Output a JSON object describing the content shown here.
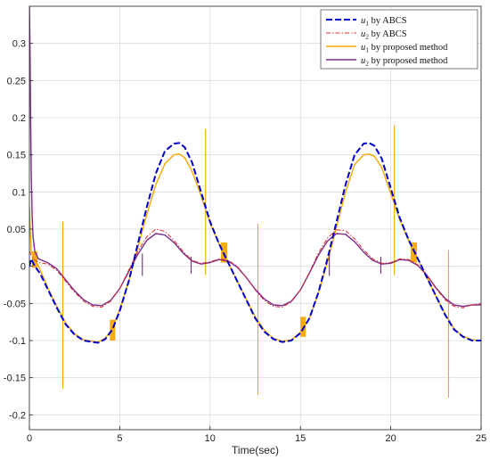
{
  "chart_data": {
    "type": "line",
    "title": "",
    "xlabel": "Time(sec)",
    "ylabel": "",
    "xlim": [
      0,
      25
    ],
    "ylim": [
      -0.22,
      0.35
    ],
    "xticks": [
      0,
      5,
      10,
      15,
      20,
      25
    ],
    "xtick_labels": [
      "0",
      "5",
      "10",
      "15",
      "20",
      "25"
    ],
    "yticks": [
      -0.2,
      -0.15,
      -0.1,
      -0.05,
      0,
      0.05,
      0.1,
      0.15,
      0.2,
      0.25,
      0.3
    ],
    "ytick_labels": [
      "-0.2",
      "-0.15",
      "-0.1",
      "-0.05",
      "0",
      "0.05",
      "0.1",
      "0.15",
      "0.2",
      "0.25",
      "0.3"
    ],
    "grid": true,
    "legend_position": "top-right",
    "series": [
      {
        "name": "u1 by ABCS",
        "legend_main": "u",
        "legend_sub": "1",
        "legend_rest": " by ABCS",
        "color": "#0000cc",
        "style": "dashed",
        "x": [
          0,
          0.1,
          0.3,
          0.6,
          1.0,
          1.5,
          2.0,
          2.5,
          3.0,
          3.5,
          3.8,
          4.2,
          4.6,
          5.0,
          5.5,
          6.0,
          6.5,
          7.0,
          7.5,
          8.0,
          8.3,
          8.6,
          9.0,
          9.5,
          10.0,
          10.5,
          11.0,
          11.5,
          12.0,
          12.5,
          13.0,
          13.5,
          14.0,
          14.5,
          15.0,
          15.5,
          16.0,
          16.5,
          17.0,
          17.5,
          18.0,
          18.5,
          18.8,
          19.1,
          19.5,
          20.0,
          20.5,
          21.0,
          21.5,
          22.0,
          22.5,
          23.0,
          23.5,
          24.0,
          24.5,
          25.0
        ],
        "y": [
          0.0,
          0.01,
          0.0,
          -0.01,
          -0.03,
          -0.055,
          -0.078,
          -0.092,
          -0.1,
          -0.102,
          -0.103,
          -0.098,
          -0.085,
          -0.06,
          -0.02,
          0.03,
          0.08,
          0.125,
          0.155,
          0.165,
          0.166,
          0.16,
          0.14,
          0.1,
          0.06,
          0.03,
          0.005,
          -0.02,
          -0.045,
          -0.07,
          -0.088,
          -0.098,
          -0.102,
          -0.1,
          -0.09,
          -0.07,
          -0.035,
          0.01,
          0.06,
          0.11,
          0.15,
          0.165,
          0.166,
          0.162,
          0.145,
          0.105,
          0.065,
          0.035,
          0.01,
          -0.015,
          -0.04,
          -0.065,
          -0.085,
          -0.095,
          -0.1,
          -0.1
        ]
      },
      {
        "name": "u2 by ABCS",
        "legend_main": "u",
        "legend_sub": "2",
        "legend_rest": " by ABCS",
        "color": "#e03030",
        "style": "dashdot",
        "x": [
          0,
          0.2,
          0.5,
          1.0,
          1.5,
          2.0,
          2.5,
          3.0,
          3.5,
          4.0,
          4.5,
          5.0,
          5.5,
          6.0,
          6.5,
          7.0,
          7.5,
          8.0,
          8.5,
          9.0,
          9.5,
          10.0,
          10.5,
          11.0,
          11.5,
          12.0,
          12.5,
          13.0,
          13.5,
          14.0,
          14.5,
          15.0,
          15.5,
          16.0,
          16.5,
          17.0,
          17.5,
          18.0,
          18.5,
          19.0,
          19.5,
          20.0,
          20.5,
          21.0,
          21.5,
          22.0,
          22.5,
          23.0,
          23.5,
          24.0,
          24.5,
          25.0
        ],
        "y": [
          0.02,
          0.01,
          0.005,
          0.003,
          -0.005,
          -0.02,
          -0.035,
          -0.047,
          -0.054,
          -0.055,
          -0.047,
          -0.03,
          -0.005,
          0.02,
          0.04,
          0.05,
          0.047,
          0.035,
          0.02,
          0.008,
          0.004,
          0.006,
          0.01,
          0.008,
          0.0,
          -0.015,
          -0.032,
          -0.046,
          -0.054,
          -0.055,
          -0.048,
          -0.032,
          -0.008,
          0.018,
          0.038,
          0.049,
          0.048,
          0.037,
          0.022,
          0.01,
          0.004,
          0.005,
          0.01,
          0.009,
          0.002,
          -0.012,
          -0.03,
          -0.045,
          -0.054,
          -0.056,
          -0.052,
          -0.05
        ]
      },
      {
        "name": "u1 by proposed method",
        "legend_main": "u",
        "legend_sub": "1",
        "legend_rest": " by proposed method",
        "color": "#f5a800",
        "style": "solid",
        "x": [
          0,
          0.1,
          0.3,
          0.6,
          1.0,
          1.5,
          2.0,
          2.5,
          3.0,
          3.5,
          3.8,
          4.2,
          4.6,
          5.0,
          5.5,
          6.0,
          6.5,
          7.0,
          7.5,
          8.0,
          8.3,
          8.6,
          9.0,
          9.5,
          10.0,
          10.5,
          11.0,
          11.5,
          12.0,
          12.5,
          13.0,
          13.5,
          14.0,
          14.5,
          15.0,
          15.5,
          16.0,
          16.5,
          17.0,
          17.5,
          18.0,
          18.5,
          18.8,
          19.1,
          19.5,
          20.0,
          20.5,
          21.0,
          21.5,
          22.0,
          22.5,
          23.0,
          23.5,
          24.0,
          24.5,
          25.0
        ],
        "y": [
          0.08,
          0.02,
          0.01,
          -0.005,
          -0.028,
          -0.053,
          -0.076,
          -0.091,
          -0.099,
          -0.101,
          -0.102,
          -0.097,
          -0.084,
          -0.058,
          -0.02,
          0.025,
          0.07,
          0.11,
          0.138,
          0.15,
          0.151,
          0.146,
          0.128,
          0.095,
          0.058,
          0.03,
          0.005,
          -0.02,
          -0.044,
          -0.068,
          -0.086,
          -0.097,
          -0.101,
          -0.099,
          -0.089,
          -0.07,
          -0.036,
          0.006,
          0.053,
          0.1,
          0.137,
          0.15,
          0.151,
          0.148,
          0.133,
          0.098,
          0.062,
          0.034,
          0.01,
          -0.015,
          -0.04,
          -0.064,
          -0.084,
          -0.094,
          -0.099,
          -0.1
        ],
        "spikes": [
          {
            "x": 1.85,
            "y_low": -0.165,
            "y_high": 0.06
          },
          {
            "x": 9.75,
            "y_low": -0.012,
            "y_high": 0.185
          },
          {
            "x": 12.65,
            "y_low": -0.173,
            "y_high": 0.057
          },
          {
            "x": 20.2,
            "y_low": -0.012,
            "y_high": 0.19
          },
          {
            "x": 23.2,
            "y_low": -0.177,
            "y_high": 0.022
          }
        ],
        "bursts": [
          {
            "x0": 0.15,
            "x1": 0.45,
            "y_low": -0.002,
            "y_high": 0.02
          },
          {
            "x0": 4.45,
            "x1": 4.75,
            "y_low": -0.1,
            "y_high": -0.072
          },
          {
            "x0": 10.6,
            "x1": 10.95,
            "y_low": 0.005,
            "y_high": 0.032
          },
          {
            "x0": 15.0,
            "x1": 15.3,
            "y_low": -0.095,
            "y_high": -0.068
          },
          {
            "x0": 21.1,
            "x1": 21.45,
            "y_low": 0.005,
            "y_high": 0.032
          }
        ]
      },
      {
        "name": "u2 by proposed method",
        "legend_main": "u",
        "legend_sub": "2",
        "legend_rest": " by proposed method",
        "color": "#7b2d8b",
        "style": "solid",
        "x": [
          0,
          0.03,
          0.06,
          0.1,
          0.15,
          0.2,
          0.3,
          0.5,
          1.0,
          1.5,
          2.0,
          2.5,
          3.0,
          3.5,
          4.0,
          4.5,
          5.0,
          5.5,
          6.0,
          6.5,
          7.0,
          7.5,
          8.0,
          8.5,
          9.0,
          9.5,
          10.0,
          10.5,
          11.0,
          11.5,
          12.0,
          12.5,
          13.0,
          13.5,
          14.0,
          14.5,
          15.0,
          15.5,
          16.0,
          16.5,
          17.0,
          17.5,
          18.0,
          18.5,
          19.0,
          19.5,
          20.0,
          20.5,
          21.0,
          21.5,
          22.0,
          22.5,
          23.0,
          23.5,
          24.0,
          24.5,
          25.0
        ],
        "y": [
          0.35,
          0.3,
          0.22,
          0.13,
          0.07,
          0.04,
          0.02,
          0.01,
          0.005,
          -0.003,
          -0.018,
          -0.033,
          -0.045,
          -0.052,
          -0.053,
          -0.046,
          -0.03,
          -0.007,
          0.016,
          0.035,
          0.044,
          0.042,
          0.032,
          0.018,
          0.007,
          0.003,
          0.005,
          0.009,
          0.007,
          -0.001,
          -0.015,
          -0.031,
          -0.044,
          -0.052,
          -0.053,
          -0.047,
          -0.032,
          -0.009,
          0.015,
          0.034,
          0.044,
          0.043,
          0.033,
          0.019,
          0.008,
          0.003,
          0.004,
          0.009,
          0.008,
          0.001,
          -0.012,
          -0.029,
          -0.043,
          -0.052,
          -0.054,
          -0.052,
          -0.052
        ],
        "spikes": [
          {
            "x": 6.25,
            "y_low": -0.013,
            "y_high": 0.017
          },
          {
            "x": 8.95,
            "y_low": -0.01,
            "y_high": 0.013
          },
          {
            "x": 16.6,
            "y_low": -0.013,
            "y_high": 0.017
          },
          {
            "x": 19.45,
            "y_low": -0.01,
            "y_high": 0.013
          }
        ]
      }
    ]
  }
}
